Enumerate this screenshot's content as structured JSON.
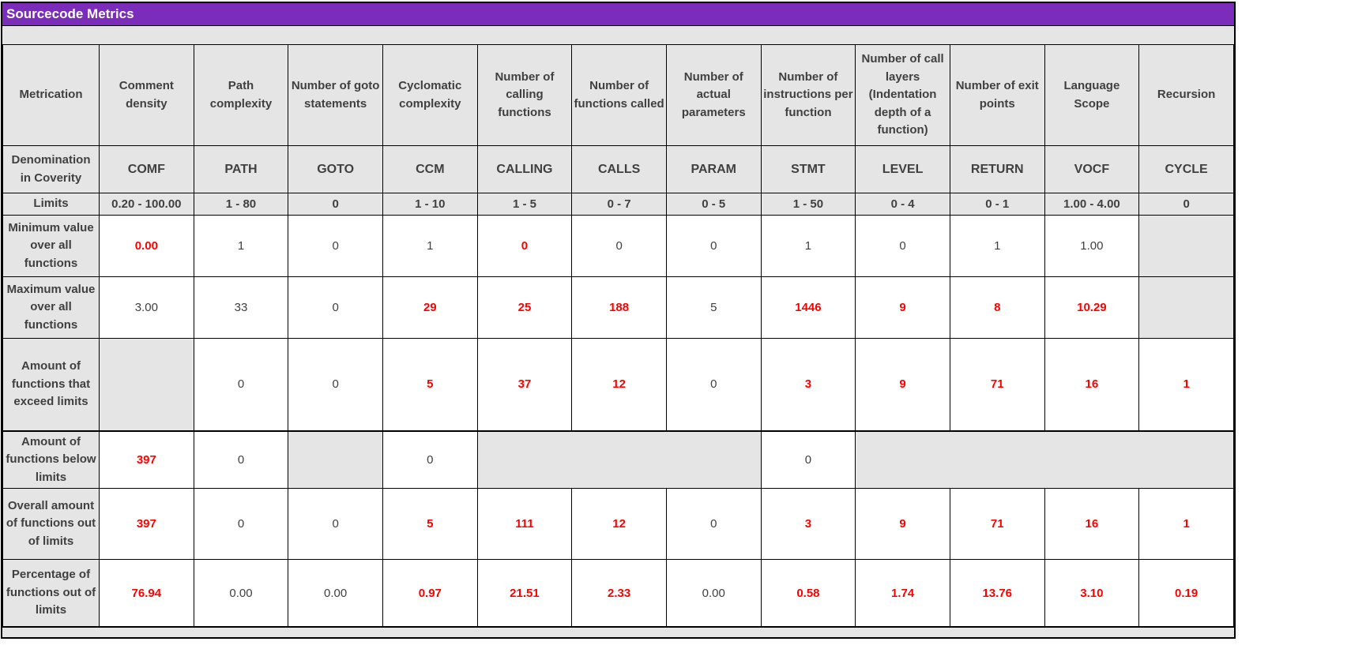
{
  "title": "Sourcecode Metrics",
  "colors": {
    "title_bg": "#7C2CBA",
    "title_text": "#FFFFFF",
    "gray_cell": "#E5E5E5",
    "dark_text": "#404040",
    "red_text": "#FF0000",
    "border": "#000000"
  },
  "table": {
    "columns": [
      "Metrication",
      "Comment density",
      "Path complexity",
      "Number of goto statements",
      "Cyclomatic complexity",
      "Number of calling functions",
      "Number of functions called",
      "Number of actual parameters",
      "Number of instructions per function",
      "Number of call layers (Indentation depth of a function)",
      "Number of exit points",
      "Language Scope",
      "Recursion"
    ],
    "rows": [
      {
        "key": "denomination",
        "label": "Denomination in Coverity",
        "style": "head",
        "cells": [
          {
            "text": "COMF"
          },
          {
            "text": "PATH"
          },
          {
            "text": "GOTO"
          },
          {
            "text": "CCM"
          },
          {
            "text": "CALLING"
          },
          {
            "text": "CALLS"
          },
          {
            "text": "PARAM"
          },
          {
            "text": "STMT"
          },
          {
            "text": "LEVEL"
          },
          {
            "text": "RETURN"
          },
          {
            "text": "VOCF"
          },
          {
            "text": "CYCLE"
          }
        ]
      },
      {
        "key": "limits",
        "label": "Limits",
        "style": "head",
        "cells": [
          {
            "text": "0.20 - 100.00"
          },
          {
            "text": "1 - 80"
          },
          {
            "text": "0"
          },
          {
            "text": "1 - 10"
          },
          {
            "text": "1 - 5"
          },
          {
            "text": "0 - 7"
          },
          {
            "text": "0 - 5"
          },
          {
            "text": "1 - 50"
          },
          {
            "text": "0 - 4"
          },
          {
            "text": "0 - 1"
          },
          {
            "text": "1.00 - 4.00"
          },
          {
            "text": "0"
          }
        ]
      },
      {
        "key": "minimum",
        "label": "Minimum value over all functions",
        "cells": [
          {
            "text": "0.00",
            "red": true
          },
          {
            "text": "1"
          },
          {
            "text": "0"
          },
          {
            "text": "1"
          },
          {
            "text": "0",
            "red": true
          },
          {
            "text": "0"
          },
          {
            "text": "0"
          },
          {
            "text": "1"
          },
          {
            "text": "0"
          },
          {
            "text": "1"
          },
          {
            "text": "1.00"
          },
          {
            "text": "",
            "gray": true
          }
        ]
      },
      {
        "key": "maximum",
        "label": "Maximum value over all functions",
        "cells": [
          {
            "text": "3.00"
          },
          {
            "text": "33"
          },
          {
            "text": "0"
          },
          {
            "text": "29",
            "red": true
          },
          {
            "text": "25",
            "red": true
          },
          {
            "text": "188",
            "red": true
          },
          {
            "text": "5"
          },
          {
            "text": "1446",
            "red": true
          },
          {
            "text": "9",
            "red": true
          },
          {
            "text": "8",
            "red": true
          },
          {
            "text": "10.29",
            "red": true
          },
          {
            "text": "",
            "gray": true
          }
        ]
      },
      {
        "key": "exceed",
        "label": "Amount of functions that exceed limits",
        "cells": [
          {
            "text": "",
            "gray": true
          },
          {
            "text": "0"
          },
          {
            "text": "0"
          },
          {
            "text": "5",
            "red": true
          },
          {
            "text": "37",
            "red": true
          },
          {
            "text": "12",
            "red": true
          },
          {
            "text": "0"
          },
          {
            "text": "3",
            "red": true
          },
          {
            "text": "9",
            "red": true
          },
          {
            "text": "71",
            "red": true
          },
          {
            "text": "16",
            "red": true
          },
          {
            "text": "1",
            "red": true
          }
        ]
      },
      {
        "key": "below",
        "label": "Amount of functions below limits",
        "cells": [
          {
            "text": "397",
            "red": true
          },
          {
            "text": "0"
          },
          {
            "text": "",
            "gray": true
          },
          {
            "text": "0"
          },
          {
            "text": "",
            "gray": true,
            "colspan": 3
          },
          {
            "text": "0"
          },
          {
            "text": "",
            "gray": true,
            "colspan": 4
          }
        ]
      },
      {
        "key": "overall",
        "label": "Overall amount of functions out of limits",
        "cells": [
          {
            "text": "397",
            "red": true
          },
          {
            "text": "0"
          },
          {
            "text": "0"
          },
          {
            "text": "5",
            "red": true
          },
          {
            "text": "111",
            "red": true
          },
          {
            "text": "12",
            "red": true
          },
          {
            "text": "0"
          },
          {
            "text": "3",
            "red": true
          },
          {
            "text": "9",
            "red": true
          },
          {
            "text": "71",
            "red": true
          },
          {
            "text": "16",
            "red": true
          },
          {
            "text": "1",
            "red": true
          }
        ]
      },
      {
        "key": "percentage",
        "label": "Percentage of functions out of limits",
        "cells": [
          {
            "text": "76.94",
            "red": true
          },
          {
            "text": "0.00"
          },
          {
            "text": "0.00"
          },
          {
            "text": "0.97",
            "red": true
          },
          {
            "text": "21.51",
            "red": true
          },
          {
            "text": "2.33",
            "red": true
          },
          {
            "text": "0.00"
          },
          {
            "text": "0.58",
            "red": true
          },
          {
            "text": "1.74",
            "red": true
          },
          {
            "text": "13.76",
            "red": true
          },
          {
            "text": "3.10",
            "red": true
          },
          {
            "text": "0.19",
            "red": true
          }
        ]
      }
    ]
  }
}
